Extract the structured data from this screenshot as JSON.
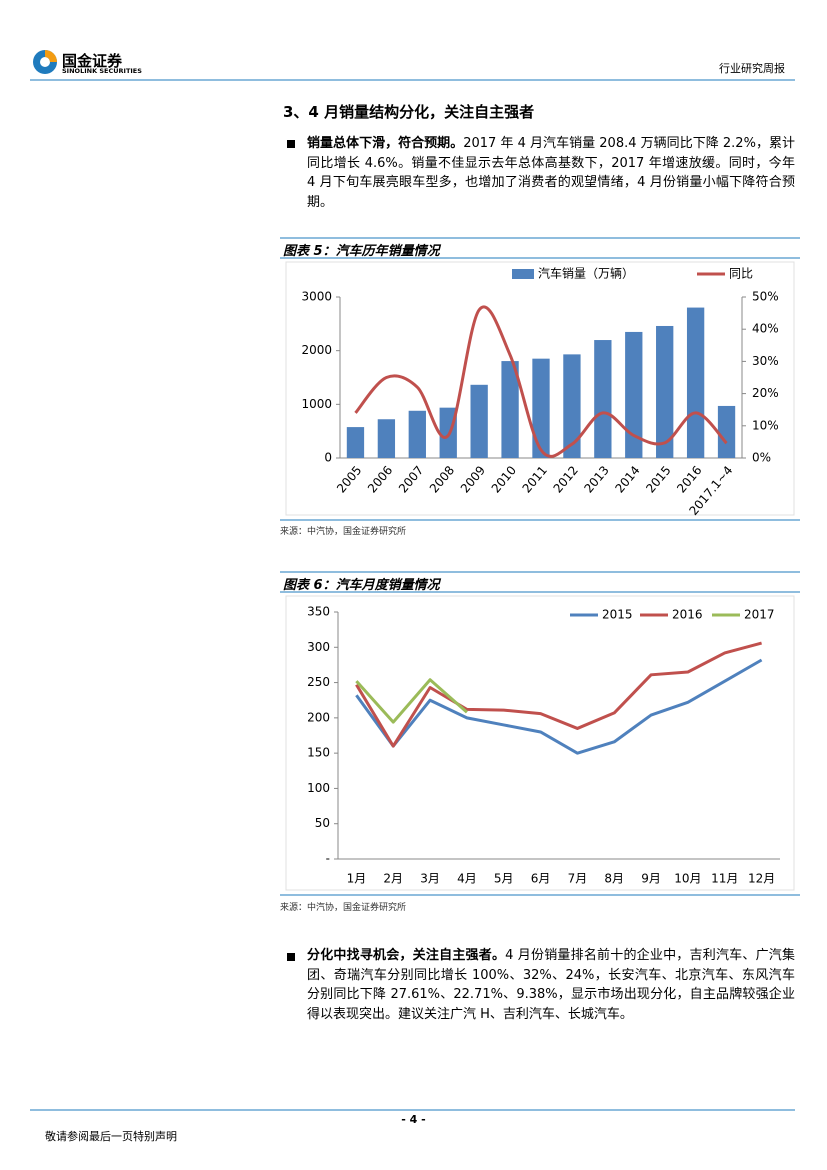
{
  "header": {
    "logo_cn": "国金证券",
    "logo_en": "SINOLINK SECURITIES",
    "report_type": "行业研究周报"
  },
  "section_title": "3、4 月销量结构分化，关注自主强者",
  "paragraphs": [
    {
      "lead": "销量总体下滑，符合预期。",
      "text": "2017 年 4 月汽车销量 208.4 万辆同比下降 2.2%，累计同比增长 4.6%。销量不佳显示去年总体高基数下，2017 年增速放缓。同时，今年 4 月下旬车展亮眼车型多，也增加了消费者的观望情绪，4 月份销量小幅下降符合预期。"
    },
    {
      "lead": "分化中找寻机会，关注自主强者。",
      "text": "4 月份销量排名前十的企业中，吉利汽车、广汽集团、奇瑞汽车分别同比增长 100%、32%、24%，长安汽车、北京汽车、东风汽车分别同比下降 27.61%、22.71%、9.38%，显示市场出现分化，自主品牌较强企业得以表现突出。建议关注广汽 H、吉利汽车、长城汽车。"
    }
  ],
  "chart_data": [
    {
      "type": "bar",
      "title": "图表 5：汽车历年销量情况",
      "source": "来源：中汽协，国金证券研究所",
      "categories": [
        "2005",
        "2006",
        "2007",
        "2008",
        "2009",
        "2010",
        "2011",
        "2012",
        "2013",
        "2014",
        "2015",
        "2016",
        "2017.1~4"
      ],
      "series": [
        {
          "name": "汽车销量（万辆）",
          "color": "#4f81bd",
          "values": [
            576,
            722,
            880,
            938,
            1364,
            1806,
            1851,
            1931,
            2198,
            2349,
            2460,
            2803,
            970
          ]
        },
        {
          "name": "同比",
          "color": "#c0504d",
          "axis": "y2",
          "smooth": true,
          "values": [
            14,
            25,
            22,
            7,
            46,
            32,
            2.5,
            4.3,
            14,
            7,
            4.7,
            14,
            4.6
          ]
        }
      ],
      "ylim": [
        0,
        3000
      ],
      "yticks": [
        0,
        1000,
        2000,
        3000
      ],
      "y2lim": [
        0,
        50
      ],
      "y2ticks": [
        {
          "value": 0,
          "label": "0%"
        },
        {
          "value": 10,
          "label": "10%"
        },
        {
          "value": 20,
          "label": "20%"
        },
        {
          "value": 30,
          "label": "30%"
        },
        {
          "value": 40,
          "label": "40%"
        },
        {
          "value": 50,
          "label": "50%"
        }
      ],
      "legend": "top",
      "grid": false
    },
    {
      "type": "line",
      "title": "图表 6：汽车月度销量情况",
      "source": "来源：中汽协，国金证券研究所",
      "categories": [
        "1月",
        "2月",
        "3月",
        "4月",
        "5月",
        "6月",
        "7月",
        "8月",
        "9月",
        "10月",
        "11月",
        "12月"
      ],
      "series": [
        {
          "name": "2015",
          "color": "#4f81bd",
          "values": [
            232,
            160,
            225,
            200,
            190,
            180,
            150,
            166,
            204,
            222,
            252,
            282
          ]
        },
        {
          "name": "2016",
          "color": "#c0504d",
          "values": [
            247,
            160,
            243,
            212,
            211,
            206,
            185,
            207,
            261,
            265,
            292,
            306
          ]
        },
        {
          "name": "2017",
          "color": "#9bbb59",
          "values": [
            252,
            194,
            254,
            208,
            null,
            null,
            null,
            null,
            null,
            null,
            null,
            null
          ]
        }
      ],
      "ylim": [
        0,
        350
      ],
      "yticks": [
        {
          "value": 0,
          "label": "-"
        },
        50,
        100,
        150,
        200,
        250,
        300,
        350
      ],
      "legend": "top right",
      "grid": false
    }
  ],
  "footer": {
    "page": "- 4 -",
    "disclaimer": "敬请参阅最后一页特别声明"
  }
}
